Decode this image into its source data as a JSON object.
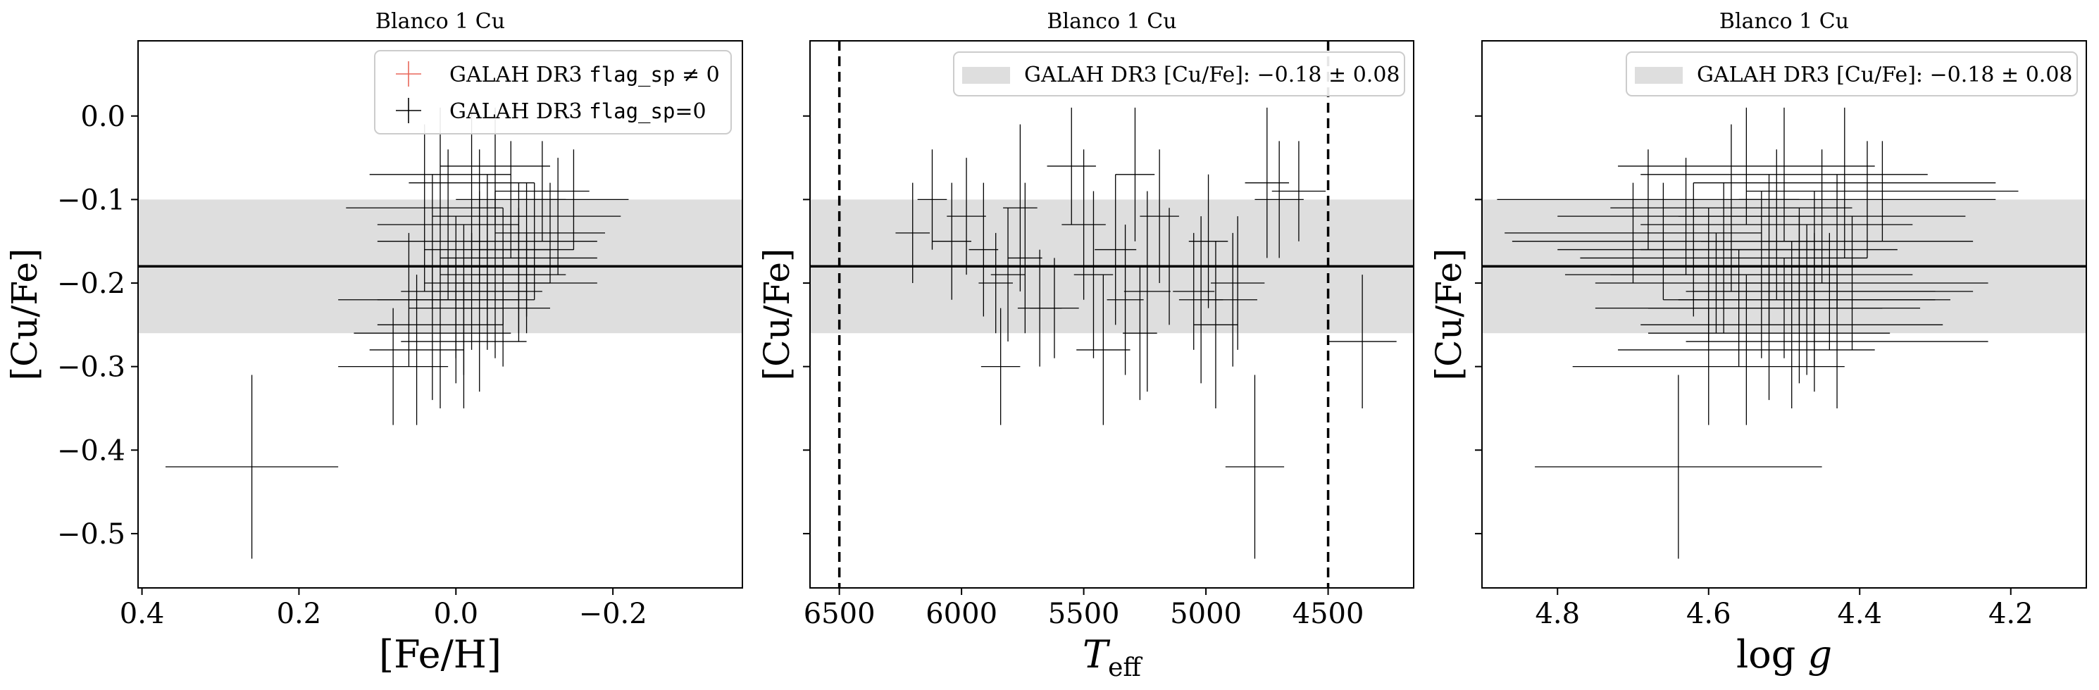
{
  "panels": [
    {
      "title": "Blanco 1 Cu",
      "xlabel": "[Fe/H]",
      "ylabel": "[Cu/Fe]",
      "xlim": [
        0.405,
        -0.365
      ],
      "ylim": [
        -0.565,
        0.09
      ],
      "xticks": [
        0.4,
        0.2,
        0.0,
        -0.2
      ],
      "xtick_labels": [
        "0.4",
        "0.2",
        "0.0",
        "−0.2"
      ],
      "yticks": [
        0.0,
        -0.1,
        -0.2,
        -0.3,
        -0.4,
        -0.5
      ],
      "ytick_labels": [
        "0.0",
        "−0.1",
        "−0.2",
        "−0.3",
        "−0.4",
        "−0.5"
      ],
      "legend": {
        "placement": "top-right",
        "entries": [
          {
            "text_pre": "GALAH DR3 ",
            "code": "flag_sp",
            "text_post": " ≠ 0",
            "color": "#e8675a"
          },
          {
            "text_pre": "GALAH DR3 ",
            "code": "flag_sp",
            "text_post": "=0",
            "color": "#000000"
          }
        ]
      }
    },
    {
      "title": "Blanco 1 Cu",
      "xlabel": "T_eff",
      "ylabel": "[Cu/Fe]",
      "xlim": [
        6620,
        4150
      ],
      "ylim": [
        -0.565,
        0.09
      ],
      "xticks": [
        6500,
        6000,
        5500,
        5000,
        4500
      ],
      "xtick_labels": [
        "6500",
        "6000",
        "5500",
        "5000",
        "4500"
      ],
      "vlines": [
        6500,
        4500
      ],
      "legend": {
        "placement": "top-right",
        "entries": [
          {
            "text_pre": "GALAH DR3 [Cu/Fe]: ",
            "value": "−0.18 ± 0.08",
            "color": "#dedede"
          }
        ]
      }
    },
    {
      "title": "Blanco 1 Cu",
      "xlabel": "log g",
      "ylabel": "[Cu/Fe]",
      "xlim": [
        4.9,
        4.1
      ],
      "ylim": [
        -0.565,
        0.09
      ],
      "xticks": [
        4.8,
        4.6,
        4.4,
        4.2
      ],
      "xtick_labels": [
        "4.8",
        "4.6",
        "4.4",
        "4.2"
      ],
      "legend": {
        "placement": "top-right",
        "entries": [
          {
            "text_pre": "GALAH DR3 [Cu/Fe]: ",
            "value": "−0.18 ± 0.08",
            "color": "#dedede"
          }
        ]
      }
    }
  ],
  "chart_data": {
    "type": "scatter",
    "mean": -0.18,
    "band": [
      -0.26,
      -0.1
    ],
    "band_color": "#dedede",
    "errorbar_color": "#000000",
    "series": [
      {
        "x": [
          0.26,
          0.08,
          0.05,
          0.03,
          0.02,
          0.0,
          -0.01,
          -0.02,
          -0.03,
          -0.04,
          -0.05,
          -0.06,
          -0.08,
          -0.09,
          -0.1,
          -0.12,
          0.01,
          -0.03,
          0.04,
          -0.07,
          -0.11,
          -0.02,
          0.02,
          -0.05,
          0.0,
          -0.08,
          -0.13,
          -0.15,
          0.06,
          -0.04,
          -0.06,
          0.03,
          -0.09,
          -0.01
        ],
        "xerr": [
          0.11,
          0.07,
          0.06,
          0.1,
          0.08,
          0.06,
          0.07,
          0.09,
          0.06,
          0.08,
          0.07,
          0.09,
          0.1,
          0.06,
          0.08,
          0.07,
          0.09,
          0.06,
          0.1,
          0.07,
          0.06,
          0.08,
          0.09,
          0.07,
          0.1,
          0.06,
          0.08,
          0.07,
          0.09,
          0.08,
          0.06,
          0.07,
          0.09,
          0.08
        ],
        "y": [
          -0.42,
          -0.3,
          -0.28,
          -0.26,
          -0.25,
          -0.23,
          -0.22,
          -0.21,
          -0.21,
          -0.2,
          -0.19,
          -0.18,
          -0.17,
          -0.16,
          -0.15,
          -0.14,
          -0.13,
          -0.12,
          -0.11,
          -0.1,
          -0.09,
          -0.08,
          -0.07,
          -0.06,
          -0.22,
          -0.19,
          -0.12,
          -0.1,
          -0.22,
          -0.16,
          -0.23,
          -0.15,
          -0.2,
          -0.27
        ],
        "yerr": [
          0.11,
          0.07,
          0.09,
          0.08,
          0.1,
          0.06,
          0.09,
          0.07,
          0.12,
          0.08,
          0.1,
          0.07,
          0.09,
          0.08,
          0.07,
          0.06,
          0.09,
          0.08,
          0.1,
          0.07,
          0.06,
          0.09,
          0.08,
          0.07,
          0.1,
          0.08,
          0.07,
          0.06,
          0.08,
          0.09,
          0.07,
          0.08,
          0.06,
          0.08
        ],
        "teff": [
          4800,
          5840,
          5420,
          5270,
          4960,
          5620,
          5330,
          5050,
          5240,
          4870,
          5460,
          5150,
          5740,
          5910,
          6040,
          6200,
          5500,
          5190,
          5760,
          4700,
          4620,
          4750,
          5290,
          5550,
          5020,
          5810,
          5980,
          6120,
          4890,
          5370,
          5680,
          4990,
          5860,
          4360
        ],
        "teff_err": [
          120,
          80,
          110,
          70,
          90,
          100,
          75,
          85,
          95,
          110,
          80,
          90,
          70,
          60,
          80,
          70,
          90,
          80,
          70,
          100,
          110,
          90,
          80,
          100,
          90,
          70,
          80,
          60,
          100,
          85,
          90,
          80,
          70,
          140
        ],
        "logg": [
          4.64,
          4.6,
          4.55,
          4.52,
          4.49,
          4.5,
          4.47,
          4.44,
          4.46,
          4.41,
          4.53,
          4.48,
          4.58,
          4.62,
          4.66,
          4.7,
          4.51,
          4.45,
          4.57,
          4.39,
          4.37,
          4.42,
          4.5,
          4.55,
          4.48,
          4.6,
          4.63,
          4.68,
          4.46,
          4.52,
          4.56,
          4.43,
          4.59,
          4.43
        ],
        "logg_err": [
          0.19,
          0.18,
          0.17,
          0.16,
          0.2,
          0.18,
          0.17,
          0.19,
          0.16,
          0.18,
          0.2,
          0.17,
          0.19,
          0.18,
          0.2,
          0.17,
          0.18,
          0.19,
          0.16,
          0.17,
          0.18,
          0.2,
          0.19,
          0.17,
          0.18,
          0.19,
          0.17,
          0.2,
          0.18,
          0.17,
          0.19,
          0.18,
          0.16,
          0.2
        ]
      }
    ]
  }
}
